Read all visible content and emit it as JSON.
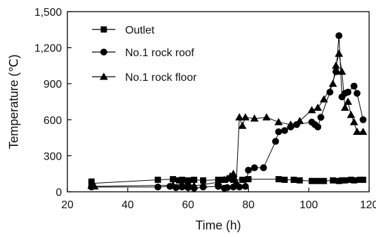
{
  "chart_data": {
    "type": "line",
    "xlabel": "Time (h)",
    "ylabel": "Temperature (℃)",
    "xlim": [
      20,
      120
    ],
    "ylim": [
      0,
      1500
    ],
    "xticks": [
      20,
      40,
      60,
      80,
      100,
      120
    ],
    "yticks": [
      0,
      300,
      600,
      900,
      1200,
      1500
    ],
    "xtick_labels": [
      "20",
      "40",
      "60",
      "80",
      "100",
      "120"
    ],
    "ytick_labels": [
      "0",
      "300",
      "600",
      "900",
      "1,200",
      "1,500"
    ],
    "grid": false,
    "legend_position": "top-left",
    "series": [
      {
        "name": "Outlet",
        "marker": "square",
        "x": [
          28,
          28,
          50,
          55,
          57,
          58,
          60,
          62,
          65,
          70,
          72,
          75,
          78,
          80,
          90,
          92,
          95,
          97,
          101,
          103,
          105,
          108,
          110,
          111,
          112,
          114,
          115,
          117,
          118
        ],
        "y": [
          85,
          70,
          100,
          105,
          95,
          100,
          95,
          100,
          95,
          100,
          100,
          100,
          100,
          105,
          105,
          100,
          100,
          95,
          90,
          90,
          90,
          95,
          90,
          95,
          95,
          100,
          95,
          100,
          100
        ]
      },
      {
        "name": "No.1 rock roof",
        "marker": "circle",
        "x": [
          28,
          50,
          54,
          56,
          58,
          60,
          62,
          65,
          70,
          72,
          73,
          75,
          77,
          79,
          80,
          82,
          85,
          89,
          90,
          92,
          94,
          96,
          101,
          102,
          103,
          104,
          107,
          109,
          110,
          111,
          112,
          113,
          115,
          116,
          118
        ],
        "y": [
          40,
          40,
          45,
          35,
          40,
          35,
          30,
          40,
          45,
          30,
          35,
          40,
          40,
          45,
          180,
          200,
          200,
          420,
          500,
          510,
          540,
          560,
          580,
          560,
          540,
          620,
          830,
          1000,
          1300,
          790,
          820,
          830,
          880,
          820,
          600
        ]
      },
      {
        "name": "No.1 rock floor",
        "marker": "triangle",
        "x": [
          28,
          29,
          55,
          58,
          60,
          62,
          65,
          70,
          72,
          73,
          74,
          75,
          76,
          77,
          78,
          79,
          82,
          86,
          90,
          94,
          97,
          101,
          103,
          105,
          108,
          109,
          110,
          111,
          112,
          113,
          114,
          115,
          116,
          118
        ],
        "y": [
          50,
          45,
          55,
          65,
          70,
          50,
          60,
          80,
          100,
          110,
          130,
          150,
          80,
          620,
          550,
          620,
          610,
          620,
          580,
          560,
          590,
          680,
          700,
          770,
          900,
          1050,
          1150,
          1000,
          700,
          750,
          640,
          580,
          500,
          500
        ]
      }
    ]
  }
}
